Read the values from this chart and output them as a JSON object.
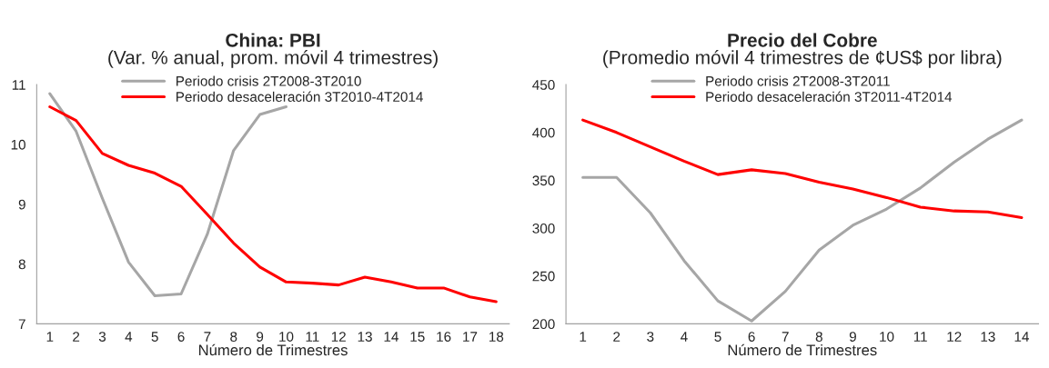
{
  "chart_data": [
    {
      "type": "line",
      "title": "China: PBI",
      "subtitle": "(Var. % anual, prom. móvil 4 trimestres)",
      "xlabel": "Número de Trimestres",
      "categories": [
        "1",
        "2",
        "3",
        "4",
        "5",
        "6",
        "7",
        "8",
        "9",
        "10",
        "11",
        "12",
        "13",
        "14",
        "15",
        "16",
        "17",
        "18"
      ],
      "series": [
        {
          "name": "Periodo crisis 2T2008-3T2010",
          "color": "#a6a6a6",
          "values": [
            10.85,
            10.22,
            9.1,
            8.03,
            7.47,
            7.5,
            8.5,
            9.9,
            10.5,
            10.63,
            null,
            null,
            null,
            null,
            null,
            null,
            null,
            null
          ]
        },
        {
          "name": "Periodo desaceleración 3T2010-4T2014",
          "color": "#ff0000",
          "values": [
            10.63,
            10.4,
            9.85,
            9.65,
            9.52,
            9.3,
            8.83,
            8.35,
            7.95,
            7.7,
            7.68,
            7.65,
            7.78,
            7.7,
            7.6,
            7.6,
            7.45,
            7.37
          ]
        }
      ],
      "ylim": [
        7,
        11
      ],
      "yticks": [
        7,
        8,
        9,
        10,
        11
      ],
      "grid": false,
      "legend": "top",
      "marker": "none",
      "line_style": "solid"
    },
    {
      "type": "line",
      "title": "Precio del Cobre",
      "subtitle": "(Promedio móvil 4 trimestres de ¢US$ por libra)",
      "xlabel": "Número de Trimestres",
      "categories": [
        "1",
        "2",
        "3",
        "4",
        "5",
        "6",
        "7",
        "8",
        "9",
        "10",
        "11",
        "12",
        "13",
        "14"
      ],
      "series": [
        {
          "name": "Periodo crisis 2T2008-3T2011",
          "color": "#a6a6a6",
          "values": [
            353,
            353,
            316,
            266,
            224,
            203,
            234,
            277,
            303,
            320,
            342,
            369,
            393,
            413
          ]
        },
        {
          "name": "Periodo desaceleración 3T2011-4T2014",
          "color": "#ff0000",
          "values": [
            413,
            400,
            385,
            370,
            356,
            361,
            357,
            348,
            341,
            332,
            322,
            318,
            317,
            311
          ]
        }
      ],
      "ylim": [
        200,
        450
      ],
      "yticks": [
        200,
        250,
        300,
        350,
        400,
        450
      ],
      "grid": false,
      "legend": "top",
      "marker": "none",
      "line_style": "solid"
    }
  ]
}
